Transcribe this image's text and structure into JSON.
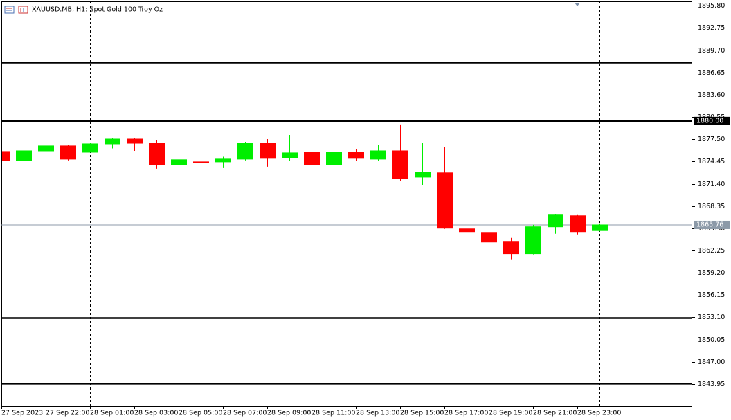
{
  "chart_data": {
    "type": "candlestick",
    "title": "XAUUSD.MB, H1: Spot Gold 100 Troy Oz",
    "categories": [
      "27 Sep 2023",
      null,
      "27 Sep 22:00",
      null,
      "28 Sep 01:00",
      null,
      "28 Sep 03:00",
      null,
      "28 Sep 05:00",
      null,
      "28 Sep 07:00",
      null,
      "28 Sep 09:00",
      null,
      "28 Sep 11:00",
      null,
      "28 Sep 13:00",
      null,
      "28 Sep 15:00",
      null,
      "28 Sep 17:00",
      null,
      "28 Sep 19:00",
      null,
      "28 Sep 21:00",
      null,
      "28 Sep 23:00",
      null
    ],
    "open": [
      1875.82,
      1874.59,
      1875.91,
      1876.58,
      1875.72,
      1876.86,
      1877.52,
      1876.95,
      1874.02,
      1874.4,
      1874.4,
      1874.78,
      1876.95,
      1874.97,
      1875.72,
      1874.02,
      1875.72,
      1874.78,
      1875.91,
      1872.31,
      1872.89,
      1865.21,
      1864.64,
      1863.41,
      1861.81,
      1865.5,
      1867.01,
      1864.98
    ],
    "high": [
      1875.9,
      1877.33,
      1878.09,
      1876.67,
      1876.95,
      1877.71,
      1877.71,
      1877.33,
      1875.05,
      1874.9,
      1875.1,
      1877.14,
      1877.52,
      1878.09,
      1876.0,
      1877.05,
      1876.19,
      1876.76,
      1879.52,
      1876.95,
      1876.39,
      1865.78,
      1865.78,
      1863.98,
      1865.78,
      1867.2,
      1867.11,
      1865.88
    ],
    "low": [
      1874.5,
      1872.31,
      1875.05,
      1874.59,
      1875.72,
      1876.24,
      1875.91,
      1873.45,
      1873.74,
      1873.6,
      1873.55,
      1874.59,
      1873.74,
      1874.5,
      1873.55,
      1873.83,
      1874.5,
      1874.5,
      1871.75,
      1871.18,
      1865.21,
      1857.64,
      1862.18,
      1860.95,
      1861.71,
      1864.55,
      1864.45,
      1864.88
    ],
    "close": [
      1874.59,
      1875.91,
      1876.58,
      1874.78,
      1876.86,
      1877.52,
      1876.95,
      1874.02,
      1874.69,
      1874.3,
      1874.78,
      1876.95,
      1874.88,
      1875.63,
      1874.02,
      1875.72,
      1874.88,
      1875.91,
      1872.12,
      1872.98,
      1865.31,
      1864.74,
      1863.41,
      1861.81,
      1865.5,
      1867.11,
      1864.74,
      1865.76
    ],
    "up_color": "#00ee00",
    "down_color": "#ff0000",
    "ylim": [
      1840.9,
      1896.4
    ],
    "yticks": [
      {
        "value": 1895.8,
        "label": "1895.80"
      },
      {
        "value": 1892.75,
        "label": "1892.75"
      },
      {
        "value": 1889.7,
        "label": "1889.70"
      },
      {
        "value": 1886.65,
        "label": "1886.65"
      },
      {
        "value": 1883.6,
        "label": "1883.60"
      },
      {
        "value": 1880.55,
        "label": "1880.55"
      },
      {
        "value": 1877.5,
        "label": "1877.50"
      },
      {
        "value": 1874.45,
        "label": "1874.45"
      },
      {
        "value": 1871.4,
        "label": "1871.40"
      },
      {
        "value": 1868.35,
        "label": "1868.35"
      },
      {
        "value": 1865.3,
        "label": "1865.30"
      },
      {
        "value": 1862.25,
        "label": "1862.25"
      },
      {
        "value": 1859.2,
        "label": "1859.20"
      },
      {
        "value": 1856.15,
        "label": "1856.15"
      },
      {
        "value": 1853.1,
        "label": "1853.10"
      },
      {
        "value": 1850.05,
        "label": "1850.05"
      },
      {
        "value": 1847.0,
        "label": "1847.00"
      },
      {
        "value": 1843.95,
        "label": "1843.95"
      }
    ],
    "levels": [
      1888.0,
      {
        "value": 1880.0,
        "label": "1880.00"
      },
      1853.0,
      1844.0
    ],
    "last_price": {
      "value": 1865.76,
      "label": "1865.76"
    }
  }
}
